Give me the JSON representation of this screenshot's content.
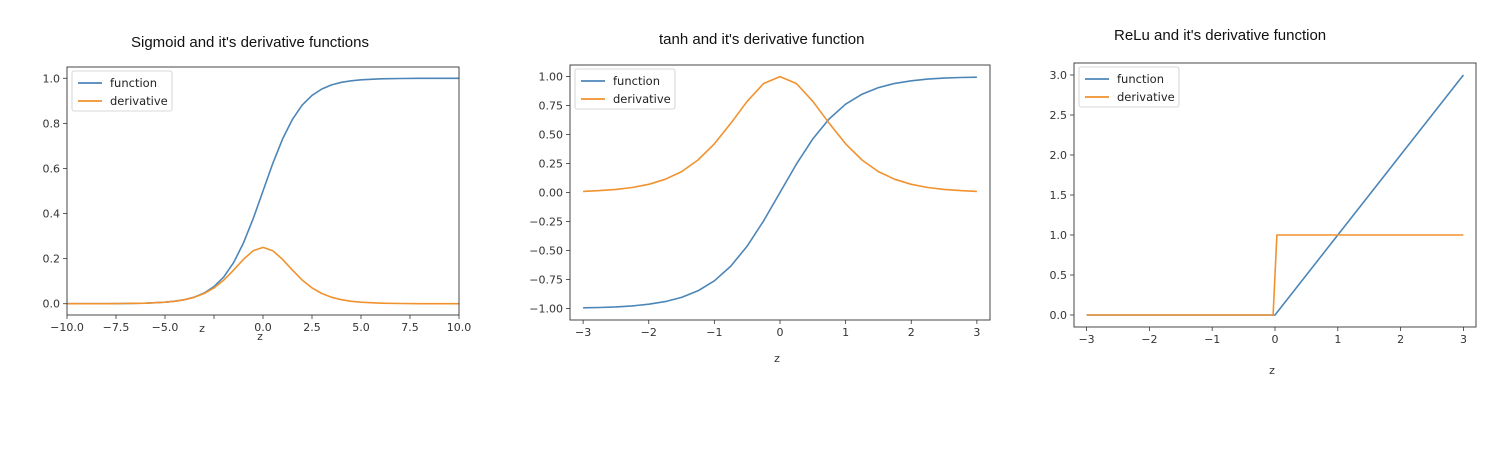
{
  "chart_data": [
    {
      "type": "line",
      "title": "Sigmoid and it's derivative functions",
      "xlabel": "z",
      "ylabel": "",
      "xlim": [
        -10,
        10
      ],
      "ylim": [
        -0.05,
        1.05
      ],
      "x_ticks": [
        -10.0,
        -7.5,
        -5.0,
        -2.5,
        0.0,
        2.5,
        5.0,
        7.5,
        10.0
      ],
      "x_tick_labels": [
        "−10.0",
        "−7.5",
        "−5.0",
        "",
        "0.0",
        "2.5",
        "5.0",
        "7.5",
        "10.0"
      ],
      "y_ticks": [
        0.0,
        0.2,
        0.4,
        0.6,
        0.8,
        1.0
      ],
      "y_tick_labels": [
        "0.0",
        "0.2",
        "0.4",
        "0.6",
        "0.8",
        "1.0"
      ],
      "legend": "top-left",
      "grid": false,
      "stray_x_label": "z",
      "series": [
        {
          "name": "function",
          "color": "#4c86b8",
          "x": [
            -10,
            -9,
            -8,
            -7,
            -6,
            -5,
            -4.5,
            -4,
            -3.5,
            -3,
            -2.5,
            -2,
            -1.5,
            -1,
            -0.5,
            0,
            0.5,
            1,
            1.5,
            2,
            2.5,
            3,
            3.5,
            4,
            4.5,
            5,
            6,
            7,
            8,
            9,
            10
          ],
          "y": [
            0.0,
            0.0001,
            0.0003,
            0.0009,
            0.0025,
            0.0067,
            0.011,
            0.018,
            0.0293,
            0.0474,
            0.0759,
            0.1192,
            0.1824,
            0.2689,
            0.3775,
            0.5,
            0.6225,
            0.7311,
            0.8176,
            0.8808,
            0.9241,
            0.9526,
            0.9707,
            0.982,
            0.989,
            0.9933,
            0.9975,
            0.9991,
            0.9997,
            0.9999,
            1.0
          ]
        },
        {
          "name": "derivative",
          "color": "#f0922e",
          "x": [
            -10,
            -9,
            -8,
            -7,
            -6,
            -5,
            -4.5,
            -4,
            -3.5,
            -3,
            -2.5,
            -2,
            -1.5,
            -1,
            -0.5,
            0,
            0.5,
            1,
            1.5,
            2,
            2.5,
            3,
            3.5,
            4,
            4.5,
            5,
            6,
            7,
            8,
            9,
            10
          ],
          "y": [
            0.0,
            0.0001,
            0.0003,
            0.0009,
            0.0025,
            0.0066,
            0.0109,
            0.0177,
            0.0285,
            0.0452,
            0.0701,
            0.105,
            0.1491,
            0.1966,
            0.235,
            0.25,
            0.235,
            0.1966,
            0.1491,
            0.105,
            0.0701,
            0.0452,
            0.0285,
            0.0177,
            0.0109,
            0.0066,
            0.0025,
            0.0009,
            0.0003,
            0.0001,
            0.0
          ]
        }
      ]
    },
    {
      "type": "line",
      "title": "tanh and it's derivative function",
      "xlabel": "z",
      "ylabel": "",
      "xlim": [
        -3.2,
        3.2
      ],
      "ylim": [
        -1.1,
        1.1
      ],
      "x_ticks": [
        -3,
        -2,
        -1,
        0,
        1,
        2,
        3
      ],
      "x_tick_labels": [
        "−3",
        "−2",
        "−1",
        "0",
        "1",
        "2",
        "3"
      ],
      "y_ticks": [
        -1.0,
        -0.75,
        -0.5,
        -0.25,
        0.0,
        0.25,
        0.5,
        0.75,
        1.0
      ],
      "y_tick_labels": [
        "−1.00",
        "−0.75",
        "−0.50",
        "−0.25",
        "0.00",
        "0.25",
        "0.50",
        "0.75",
        "1.00"
      ],
      "legend": "top-left",
      "grid": false,
      "series": [
        {
          "name": "function",
          "color": "#4c86b8",
          "x": [
            -3,
            -2.75,
            -2.5,
            -2.25,
            -2,
            -1.75,
            -1.5,
            -1.25,
            -1,
            -0.75,
            -0.5,
            -0.25,
            0,
            0.25,
            0.5,
            0.75,
            1,
            1.25,
            1.5,
            1.75,
            2,
            2.25,
            2.5,
            2.75,
            3
          ],
          "y": [
            -0.9951,
            -0.9918,
            -0.9866,
            -0.978,
            -0.964,
            -0.9414,
            -0.9051,
            -0.8483,
            -0.7616,
            -0.6351,
            -0.4621,
            -0.2449,
            0,
            0.2449,
            0.4621,
            0.6351,
            0.7616,
            0.8483,
            0.9051,
            0.9414,
            0.964,
            0.978,
            0.9866,
            0.9918,
            0.9951
          ]
        },
        {
          "name": "derivative",
          "color": "#f0922e",
          "x": [
            -3,
            -2.75,
            -2.5,
            -2.25,
            -2,
            -1.75,
            -1.5,
            -1.25,
            -1,
            -0.75,
            -0.5,
            -0.25,
            0,
            0.25,
            0.5,
            0.75,
            1,
            1.25,
            1.5,
            1.75,
            2,
            2.25,
            2.5,
            2.75,
            3
          ],
          "y": [
            0.0099,
            0.0163,
            0.0266,
            0.0435,
            0.0707,
            0.1138,
            0.1807,
            0.2804,
            0.42,
            0.5966,
            0.7864,
            0.94,
            1.0,
            0.94,
            0.7864,
            0.5966,
            0.42,
            0.2804,
            0.1807,
            0.1138,
            0.0707,
            0.0435,
            0.0266,
            0.0163,
            0.0099
          ]
        }
      ]
    },
    {
      "type": "line",
      "title": "ReLu and it's derivative function",
      "xlabel": "z",
      "ylabel": "",
      "xlim": [
        -3.2,
        3.2
      ],
      "ylim": [
        -0.15,
        3.15
      ],
      "x_ticks": [
        -3,
        -2,
        -1,
        0,
        1,
        2,
        3
      ],
      "x_tick_labels": [
        "−3",
        "−2",
        "−1",
        "0",
        "1",
        "2",
        "3"
      ],
      "y_ticks": [
        0.0,
        0.5,
        1.0,
        1.5,
        2.0,
        2.5,
        3.0
      ],
      "y_tick_labels": [
        "0.0",
        "0.5",
        "1.0",
        "1.5",
        "2.0",
        "2.5",
        "3.0"
      ],
      "legend": "top-left",
      "grid": false,
      "series": [
        {
          "name": "function",
          "color": "#4c86b8",
          "x": [
            -3,
            0,
            3
          ],
          "y": [
            0,
            0,
            3
          ]
        },
        {
          "name": "derivative",
          "color": "#f0922e",
          "x": [
            -3,
            -0.03,
            0.03,
            3
          ],
          "y": [
            0,
            0,
            1,
            1
          ]
        }
      ]
    }
  ]
}
